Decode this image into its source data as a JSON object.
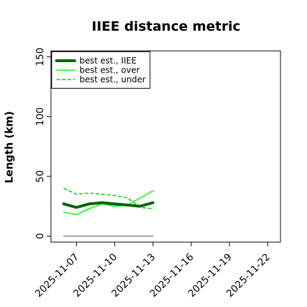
{
  "chart_data": {
    "type": "line",
    "title": "IIEE distance metric",
    "xlabel": "",
    "ylabel": "Length (km)",
    "xlim": [
      "2025-11-05",
      "2025-11-23"
    ],
    "ylim": [
      -5,
      155
    ],
    "x_ticks": [
      "2025-11-07",
      "2025-11-10",
      "2025-11-13",
      "2025-11-16",
      "2025-11-19",
      "2025-11-22"
    ],
    "y_ticks": [
      0,
      50,
      100,
      150
    ],
    "grid": false,
    "legend_position": "top-left",
    "series": [
      {
        "name": "best est., IIEE",
        "color": "#006400",
        "style": "solid-thick",
        "x": [
          "2025-11-06",
          "2025-11-07",
          "2025-11-08",
          "2025-11-09",
          "2025-11-10",
          "2025-11-11",
          "2025-11-12",
          "2025-11-13"
        ],
        "values": [
          27,
          24,
          27,
          28,
          27,
          26,
          25,
          28
        ]
      },
      {
        "name": "best est., over",
        "color": "#00ff00",
        "style": "solid",
        "x": [
          "2025-11-06",
          "2025-11-07",
          "2025-11-08",
          "2025-11-09",
          "2025-11-10",
          "2025-11-11",
          "2025-11-12",
          "2025-11-13"
        ],
        "values": [
          20,
          18,
          23,
          27,
          25,
          26,
          32,
          38
        ]
      },
      {
        "name": "best est., under",
        "color": "#00cc00",
        "style": "dashed",
        "x": [
          "2025-11-06",
          "2025-11-07",
          "2025-11-08",
          "2025-11-09",
          "2025-11-10",
          "2025-11-11",
          "2025-11-12",
          "2025-11-13"
        ],
        "values": [
          40,
          35,
          36,
          35,
          34,
          32,
          24,
          23
        ]
      },
      {
        "name": "",
        "color": "#808080",
        "style": "solid",
        "x": [
          "2025-11-06",
          "2025-11-13"
        ],
        "values": [
          0,
          0
        ]
      }
    ]
  }
}
